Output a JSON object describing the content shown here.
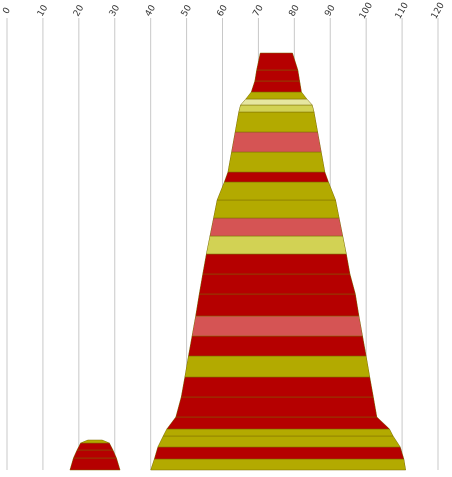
{
  "chart_data": {
    "type": "area",
    "description_axis": "x",
    "x_ticks": [
      0,
      10,
      20,
      30,
      40,
      50,
      60,
      70,
      80,
      90,
      100,
      110,
      120
    ],
    "xlim": [
      0,
      120
    ],
    "grid": true,
    "colors": {
      "dark_red": "#b50000",
      "olive": "#b3aa00",
      "salmon": "#d55454",
      "light_olive": "#d2d254",
      "pale": "#e6e6a0",
      "grid": "#c8c8c8"
    },
    "shapes": [
      {
        "name": "main",
        "bands": [
          {
            "x0_start": 70.5,
            "x0_end": 79.5,
            "x1_start": 69.5,
            "x1_end": 81.0,
            "thickness": 17,
            "color": "dark_red"
          },
          {
            "x0_start": 69.5,
            "x0_end": 81.0,
            "x1_start": 69.0,
            "x1_end": 81.5,
            "thickness": 11,
            "color": "dark_red"
          },
          {
            "x0_start": 69.0,
            "x0_end": 81.5,
            "x1_start": 68.0,
            "x1_end": 82.0,
            "thickness": 11,
            "color": "dark_red"
          },
          {
            "x0_start": 68.0,
            "x0_end": 82.0,
            "x1_start": 66.5,
            "x1_end": 83.5,
            "thickness": 7,
            "color": "olive"
          },
          {
            "x0_start": 66.5,
            "x0_end": 83.5,
            "x1_start": 65.0,
            "x1_end": 85.0,
            "thickness": 6,
            "color": "pale"
          },
          {
            "x0_start": 65.0,
            "x0_end": 85.0,
            "x1_start": 64.5,
            "x1_end": 85.5,
            "thickness": 7,
            "color": "light_olive"
          },
          {
            "x0_start": 64.5,
            "x0_end": 85.5,
            "x1_start": 63.5,
            "x1_end": 86.5,
            "thickness": 20,
            "color": "olive"
          },
          {
            "x0_start": 63.5,
            "x0_end": 86.5,
            "x1_start": 62.5,
            "x1_end": 87.5,
            "thickness": 20,
            "color": "salmon"
          },
          {
            "x0_start": 62.5,
            "x0_end": 87.5,
            "x1_start": 61.5,
            "x1_end": 88.5,
            "thickness": 20,
            "color": "olive"
          },
          {
            "x0_start": 61.5,
            "x0_end": 88.5,
            "x1_start": 60.5,
            "x1_end": 89.5,
            "thickness": 10,
            "color": "dark_red"
          },
          {
            "x0_start": 60.5,
            "x0_end": 89.5,
            "x1_start": 58.5,
            "x1_end": 91.5,
            "thickness": 18,
            "color": "olive"
          },
          {
            "x0_start": 58.5,
            "x0_end": 91.5,
            "x1_start": 57.5,
            "x1_end": 92.5,
            "thickness": 18,
            "color": "olive"
          },
          {
            "x0_start": 57.5,
            "x0_end": 92.5,
            "x1_start": 56.5,
            "x1_end": 93.5,
            "thickness": 18,
            "color": "salmon"
          },
          {
            "x0_start": 56.5,
            "x0_end": 93.5,
            "x1_start": 55.5,
            "x1_end": 94.5,
            "thickness": 18,
            "color": "light_olive"
          },
          {
            "x0_start": 55.5,
            "x0_end": 94.5,
            "x1_start": 54.5,
            "x1_end": 95.5,
            "thickness": 20,
            "color": "dark_red"
          },
          {
            "x0_start": 54.5,
            "x0_end": 95.5,
            "x1_start": 53.5,
            "x1_end": 97.0,
            "thickness": 20,
            "color": "dark_red"
          },
          {
            "x0_start": 53.5,
            "x0_end": 97.0,
            "x1_start": 52.5,
            "x1_end": 98.0,
            "thickness": 22,
            "color": "dark_red"
          },
          {
            "x0_start": 52.5,
            "x0_end": 98.0,
            "x1_start": 51.5,
            "x1_end": 99.0,
            "thickness": 20,
            "color": "salmon"
          },
          {
            "x0_start": 51.5,
            "x0_end": 99.0,
            "x1_start": 50.5,
            "x1_end": 100.0,
            "thickness": 20,
            "color": "dark_red"
          },
          {
            "x0_start": 50.5,
            "x0_end": 100.0,
            "x1_start": 49.5,
            "x1_end": 101.0,
            "thickness": 21,
            "color": "olive"
          },
          {
            "x0_start": 49.5,
            "x0_end": 101.0,
            "x1_start": 48.5,
            "x1_end": 102.0,
            "thickness": 20,
            "color": "dark_red"
          },
          {
            "x0_start": 48.5,
            "x0_end": 102.0,
            "x1_start": 47.0,
            "x1_end": 103.0,
            "thickness": 20,
            "color": "dark_red"
          },
          {
            "x0_start": 47.0,
            "x0_end": 103.0,
            "x1_start": 44.5,
            "x1_end": 106.5,
            "thickness": 12,
            "color": "dark_red"
          },
          {
            "x0_start": 44.5,
            "x0_end": 106.5,
            "x1_start": 43.5,
            "x1_end": 107.5,
            "thickness": 7,
            "color": "olive"
          },
          {
            "x0_start": 43.5,
            "x0_end": 107.5,
            "x1_start": 42.0,
            "x1_end": 109.5,
            "thickness": 11,
            "color": "olive"
          },
          {
            "x0_start": 42.0,
            "x0_end": 109.5,
            "x1_start": 41.0,
            "x1_end": 110.5,
            "thickness": 12,
            "color": "dark_red"
          },
          {
            "x0_start": 41.0,
            "x0_end": 110.5,
            "x1_start": 40.0,
            "x1_end": 111.0,
            "thickness": 11,
            "color": "olive"
          }
        ]
      },
      {
        "name": "small",
        "bands": [
          {
            "x0_start": 22.5,
            "x0_end": 26.5,
            "x1_start": 20.5,
            "x1_end": 28.5,
            "thickness": 3,
            "color": "olive"
          },
          {
            "x0_start": 20.5,
            "x0_end": 28.5,
            "x1_start": 19.5,
            "x1_end": 29.5,
            "thickness": 7,
            "color": "dark_red"
          },
          {
            "x0_start": 19.5,
            "x0_end": 29.5,
            "x1_start": 18.5,
            "x1_end": 30.5,
            "thickness": 8,
            "color": "dark_red"
          },
          {
            "x0_start": 18.5,
            "x0_end": 30.5,
            "x1_start": 17.5,
            "x1_end": 31.5,
            "thickness": 12,
            "color": "dark_red"
          }
        ]
      }
    ]
  }
}
